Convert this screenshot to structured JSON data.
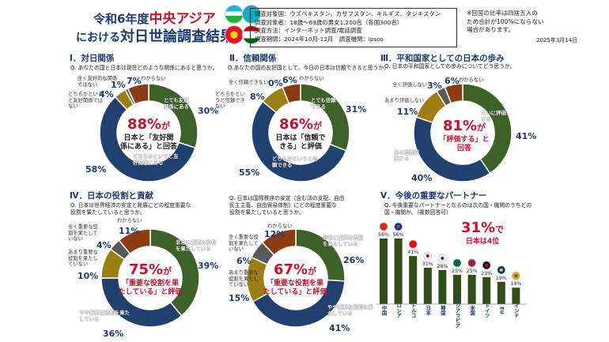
{
  "header": {
    "title_line1_prefix": "令和6年度",
    "title_line1_red": "中央アジア",
    "title_line2_prefix": "における",
    "title_line2_main": "対日世論調査結果"
  },
  "survey": {
    "line1": "調査対象国：ウズベキスタン、カザフスタン、キルギス、タジキスタン",
    "line2": "調査対象者：18歳～69歳の男女1,200名（各国300名）",
    "line3": "調査方法：インターネット調査/電話調査",
    "line4": "調査期間：2024年10月-12月　調査機関：Ipsos"
  },
  "note": {
    "text1": "※回答の比率は四捨五入の",
    "text2": "ため合計が100%にならない",
    "text3": "場合があります。"
  },
  "date": "2025年3月14日",
  "colors": {
    "green": "#3e6127",
    "blue": "#21406e",
    "olive": "#9b7f13",
    "gray": "#595959",
    "rust": "#8b3c12",
    "barGreen": "#2f4e1a",
    "red": "#c8102e",
    "navy": "#1f3a70"
  },
  "sections": {
    "s1": {
      "title": "Ⅰ．対日関係",
      "q": "Q. あなたの国と日本は現在どのような関係にあると思うか。",
      "center_big": "88%",
      "center_suffix": "が",
      "center_line2": "日本と「友好関",
      "center_line3": "係にある」と回答"
    },
    "s2": {
      "title": "Ⅱ．信頼関係",
      "q": "Q.あなたの国の友好国として、今日の日本は信頼できると思うか。",
      "center_big": "86%",
      "center_suffix": "が",
      "center_line2": "日本は「信頼で",
      "center_line3": "きる」と評価"
    },
    "s3": {
      "title": "Ⅲ．平和国家としての日本の歩み",
      "q": "Q. 日本の平和国家としての歩みについてどう思うか。",
      "center_big": "81%",
      "center_suffix": "が",
      "center_line2": "「評価する」と",
      "center_line3": "回答"
    },
    "s4": {
      "title": "Ⅳ．日本の役割と貢献",
      "q1": "Q. 日本は世界経済の安定と発展にどの程度重要な",
      "q2": "役割を果たしていると思うか。",
      "center_big": "75%",
      "center_suffix": "が",
      "center_line2": "「重要な役割を果",
      "center_line3": "たしている」と評価"
    },
    "s5": {
      "q1": "Q. 日本は国際秩序の安定（含む法の支配、自由",
      "q2": "民主主義、自由貿易体制）にどの程度重要な",
      "q3": "役割を果たしていると思うか。",
      "center_big": "67%",
      "center_suffix": "が",
      "center_line2": "「重要な役割を果",
      "center_line3": "たしている」と評価"
    },
    "s6": {
      "title": "Ⅴ．今後の重要なパートナー",
      "q1": "Q. 今後重要なパートナーとなるのは次の国・機関のうちどの",
      "q2": "国・機関か。（複数回答可）",
      "big": "31%",
      "big_suffix": "で",
      "big_line2": "日本は4位"
    }
  },
  "chart_data": [
    {
      "type": "pie",
      "name": "s1",
      "categories": [
        "とても友好関係にある",
        "どちらかというと友好関係にある",
        "どちらかというと友好関係ではない",
        "全く友好的な関係ではない",
        "わからない"
      ],
      "values": [
        30,
        58,
        4,
        1,
        7
      ],
      "labels": [
        "30%",
        "58%",
        "4%",
        "1%",
        "7%"
      ]
    },
    {
      "type": "pie",
      "name": "s2",
      "categories": [
        "とても信頼できる",
        "どちらかというと信頼できる",
        "どちらかというと信頼できない",
        "全く信頼できない",
        "わからない"
      ],
      "values": [
        31,
        55,
        8,
        0,
        6
      ],
      "labels": [
        "31%",
        "55%",
        "8%",
        "0%",
        "6%"
      ]
    },
    {
      "type": "pie",
      "name": "s3",
      "categories": [
        "大いに評価する",
        "ある程度評価する",
        "あまり評価しない",
        "全く評価しない",
        "わからない"
      ],
      "values": [
        41,
        40,
        11,
        3,
        6
      ],
      "labels": [
        "41%",
        "40%",
        "11%",
        "3%",
        "6%"
      ]
    },
    {
      "type": "pie",
      "name": "s4",
      "categories": [
        "非常に重要な役割を果たしている",
        "やや重要な役割を果たしている",
        "あまり重要な役割を果たしていない",
        "全く重要な役割を果たしていない",
        "わからない"
      ],
      "values": [
        39,
        36,
        10,
        4,
        11
      ],
      "labels": [
        "39%",
        "36%",
        "10%",
        "4%",
        "11%"
      ]
    },
    {
      "type": "pie",
      "name": "s5",
      "categories": [
        "非常に重要な役割を果たしている",
        "やや重要な役割を果たしている",
        "あまり重要な役割を果たしていない",
        "全く重要な役割を果たしていない",
        "わからない"
      ],
      "values": [
        26,
        41,
        15,
        6,
        12
      ],
      "labels": [
        "26%",
        "41%",
        "15%",
        "6%",
        "12%"
      ]
    },
    {
      "type": "bar",
      "name": "s6",
      "categories": [
        "中国",
        "ロシア",
        "トルコ",
        "日本",
        "韓国",
        "サウジアラビア",
        "米国",
        "ドイツ",
        "EU",
        "インド"
      ],
      "values": [
        56,
        56,
        41,
        31,
        29,
        25,
        25,
        23,
        19,
        14
      ],
      "labels": [
        "56%",
        "56%",
        "41%",
        "31%",
        "29%",
        "25%",
        "25%",
        "23%",
        "19%",
        "14%"
      ],
      "ylim": [
        0,
        60
      ]
    }
  ]
}
